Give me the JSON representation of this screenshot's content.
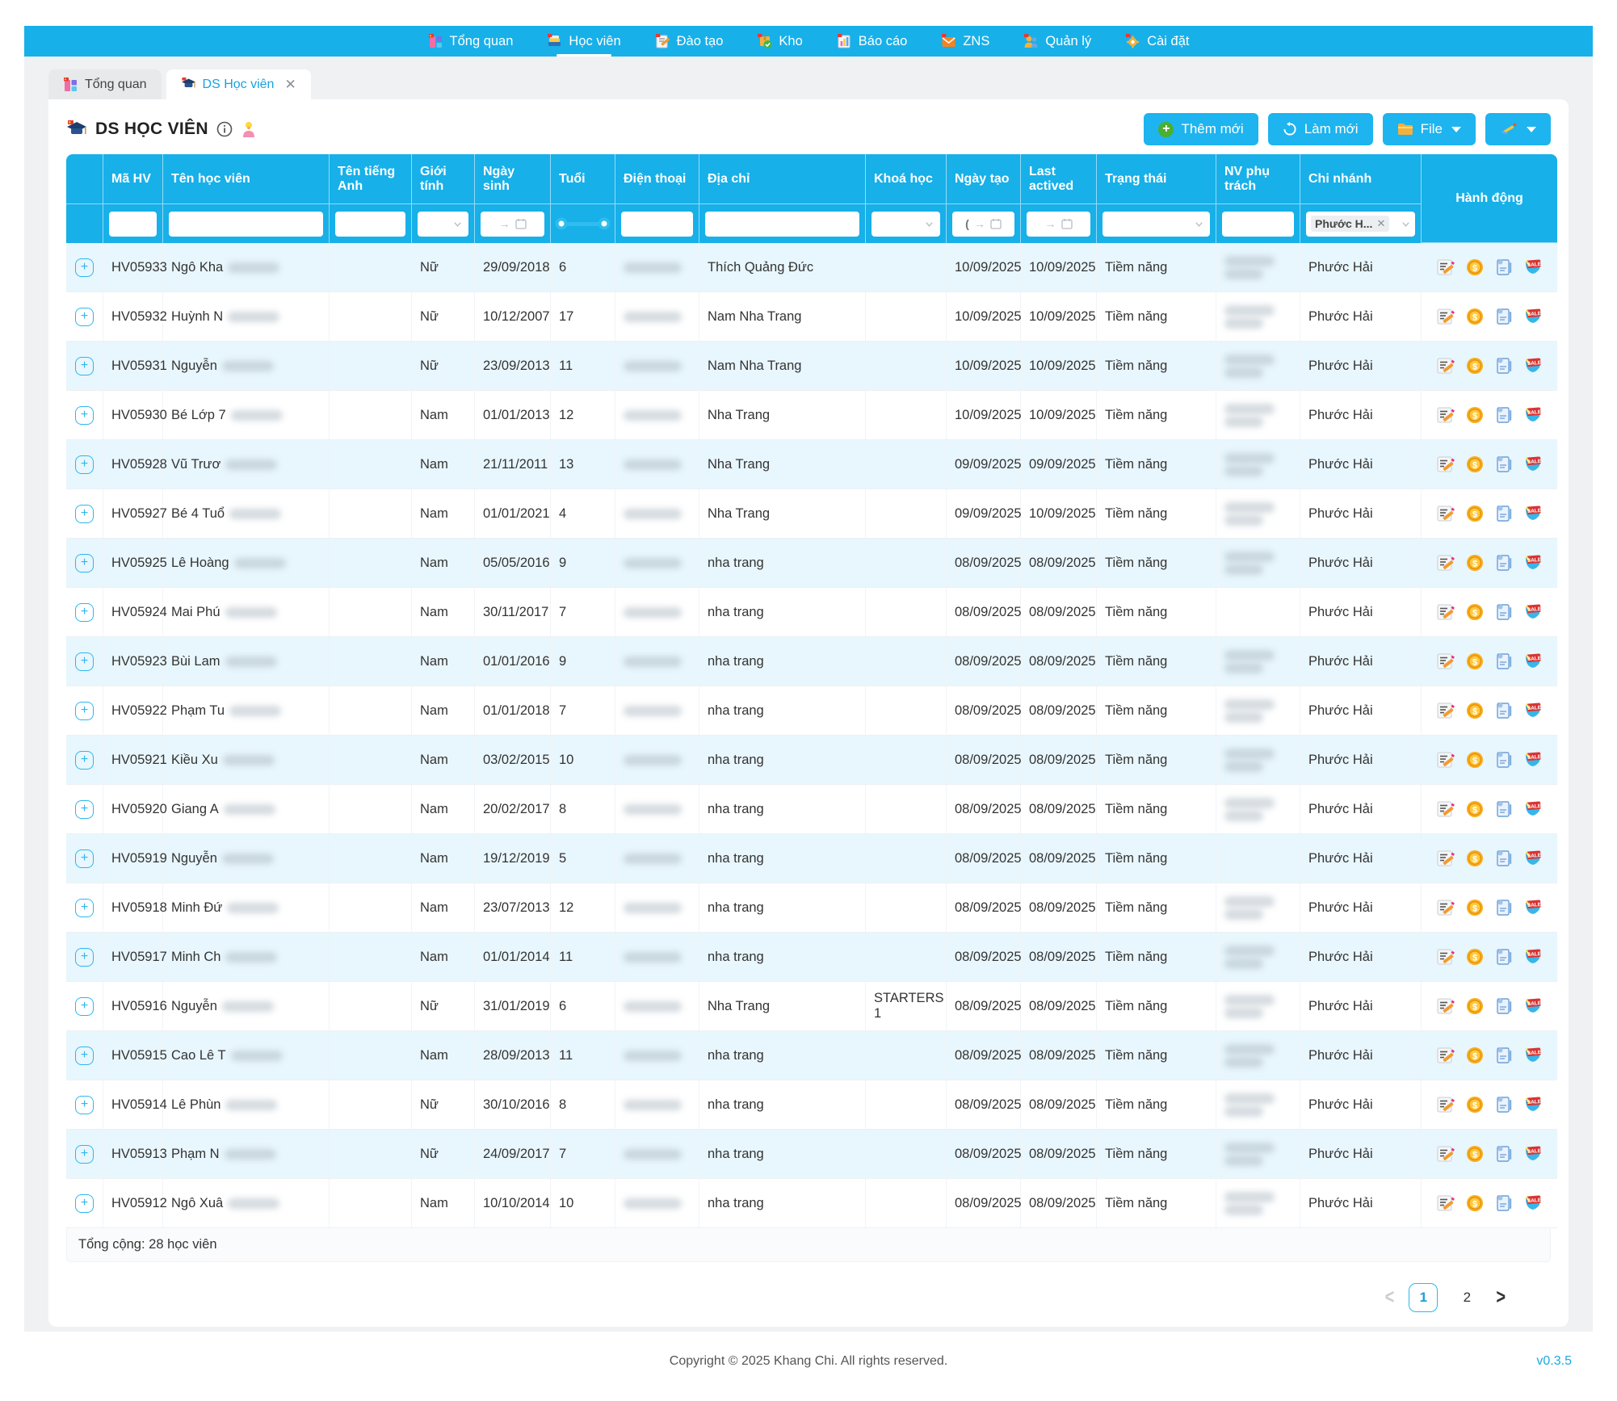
{
  "nav": {
    "items": [
      {
        "label": "Tổng quan",
        "icon": "overview-icon",
        "active": false
      },
      {
        "label": "Học viên",
        "icon": "students-icon",
        "active": true
      },
      {
        "label": "Đào tạo",
        "icon": "training-icon",
        "active": false
      },
      {
        "label": "Kho",
        "icon": "warehouse-icon",
        "active": false
      },
      {
        "label": "Báo cáo",
        "icon": "report-icon",
        "active": false
      },
      {
        "label": "ZNS",
        "icon": "zns-icon",
        "active": false
      },
      {
        "label": "Quản lý",
        "icon": "manage-icon",
        "active": false
      },
      {
        "label": "Cài đặt",
        "icon": "settings-icon",
        "active": false
      }
    ]
  },
  "tabs": [
    {
      "label": "Tổng quan",
      "icon": "overview-icon",
      "active": false,
      "closable": false
    },
    {
      "label": "DS Học viên",
      "icon": "gradcap-icon",
      "active": true,
      "closable": true,
      "close_glyph": "✕"
    }
  ],
  "header": {
    "title": "DS HỌC VIÊN"
  },
  "toolbar": {
    "add_label": "Thêm mới",
    "refresh_label": "Làm mới",
    "file_label": "File"
  },
  "table": {
    "columns": [
      "",
      "Mã HV",
      "Tên học viên",
      "Tên tiếng Anh",
      "Giới tính",
      "Ngày sinh",
      "Tuổi",
      "Điện thoại",
      "Địa chỉ",
      "Khoá học",
      "Ngày tạo",
      "Last actived",
      "Trạng thái",
      "NV phụ trách",
      "Chi nhánh",
      "Hành động"
    ],
    "filters": {
      "created_prefix": "(",
      "date_arrow": "→",
      "branch_tag": "Phước H...",
      "branch_tag_close": "✕"
    },
    "rows": [
      {
        "code": "HV05933",
        "name": "Ngô Kha",
        "gender": "Nữ",
        "dob": "29/09/2018",
        "age": "6",
        "address": "Thích Quảng Đức",
        "course": "",
        "created": "10/09/2025",
        "last": "10/09/2025",
        "status": "Tiềm năng",
        "nv": true,
        "branch": "Phước Hải"
      },
      {
        "code": "HV05932",
        "name": "Huỳnh N",
        "gender": "Nữ",
        "dob": "10/12/2007",
        "age": "17",
        "address": "Nam Nha Trang",
        "course": "",
        "created": "10/09/2025",
        "last": "10/09/2025",
        "status": "Tiềm năng",
        "nv": true,
        "branch": "Phước Hải"
      },
      {
        "code": "HV05931",
        "name": "Nguyễn",
        "gender": "Nữ",
        "dob": "23/09/2013",
        "age": "11",
        "address": "Nam Nha Trang",
        "course": "",
        "created": "10/09/2025",
        "last": "10/09/2025",
        "status": "Tiềm năng",
        "nv": true,
        "branch": "Phước Hải"
      },
      {
        "code": "HV05930",
        "name": "Bé Lớp 7",
        "gender": "Nam",
        "dob": "01/01/2013",
        "age": "12",
        "address": "Nha Trang",
        "course": "",
        "created": "10/09/2025",
        "last": "10/09/2025",
        "status": "Tiềm năng",
        "nv": true,
        "branch": "Phước Hải"
      },
      {
        "code": "HV05928",
        "name": "Vũ Trươ",
        "gender": "Nam",
        "dob": "21/11/2011",
        "age": "13",
        "address": "Nha Trang",
        "course": "",
        "created": "09/09/2025",
        "last": "09/09/2025",
        "status": "Tiềm năng",
        "nv": true,
        "branch": "Phước Hải"
      },
      {
        "code": "HV05927",
        "name": "Bé 4 Tuổ",
        "gender": "Nam",
        "dob": "01/01/2021",
        "age": "4",
        "address": "Nha Trang",
        "course": "",
        "created": "09/09/2025",
        "last": "10/09/2025",
        "status": "Tiềm năng",
        "nv": true,
        "branch": "Phước Hải"
      },
      {
        "code": "HV05925",
        "name": "Lê Hoàng",
        "gender": "Nam",
        "dob": "05/05/2016",
        "age": "9",
        "address": "nha trang",
        "course": "",
        "created": "08/09/2025",
        "last": "08/09/2025",
        "status": "Tiềm năng",
        "nv": true,
        "branch": "Phước Hải"
      },
      {
        "code": "HV05924",
        "name": "Mai Phú",
        "gender": "Nam",
        "dob": "30/11/2017",
        "age": "7",
        "address": "nha trang",
        "course": "",
        "created": "08/09/2025",
        "last": "08/09/2025",
        "status": "Tiềm năng",
        "nv": false,
        "branch": "Phước Hải"
      },
      {
        "code": "HV05923",
        "name": "Bùi Lam",
        "gender": "Nam",
        "dob": "01/01/2016",
        "age": "9",
        "address": "nha trang",
        "course": "",
        "created": "08/09/2025",
        "last": "08/09/2025",
        "status": "Tiềm năng",
        "nv": true,
        "branch": "Phước Hải"
      },
      {
        "code": "HV05922",
        "name": "Phạm Tu",
        "gender": "Nam",
        "dob": "01/01/2018",
        "age": "7",
        "address": "nha trang",
        "course": "",
        "created": "08/09/2025",
        "last": "08/09/2025",
        "status": "Tiềm năng",
        "nv": true,
        "branch": "Phước Hải"
      },
      {
        "code": "HV05921",
        "name": "Kiều Xu",
        "gender": "Nam",
        "dob": "03/02/2015",
        "age": "10",
        "address": "nha trang",
        "course": "",
        "created": "08/09/2025",
        "last": "08/09/2025",
        "status": "Tiềm năng",
        "nv": true,
        "branch": "Phước Hải"
      },
      {
        "code": "HV05920",
        "name": "Giang A",
        "gender": "Nam",
        "dob": "20/02/2017",
        "age": "8",
        "address": "nha trang",
        "course": "",
        "created": "08/09/2025",
        "last": "08/09/2025",
        "status": "Tiềm năng",
        "nv": true,
        "branch": "Phước Hải"
      },
      {
        "code": "HV05919",
        "name": "Nguyễn",
        "gender": "Nam",
        "dob": "19/12/2019",
        "age": "5",
        "address": "nha trang",
        "course": "",
        "created": "08/09/2025",
        "last": "08/09/2025",
        "status": "Tiềm năng",
        "nv": false,
        "branch": "Phước Hải"
      },
      {
        "code": "HV05918",
        "name": "Minh Đứ",
        "gender": "Nam",
        "dob": "23/07/2013",
        "age": "12",
        "address": "nha trang",
        "course": "",
        "created": "08/09/2025",
        "last": "08/09/2025",
        "status": "Tiềm năng",
        "nv": true,
        "branch": "Phước Hải"
      },
      {
        "code": "HV05917",
        "name": "Minh Ch",
        "gender": "Nam",
        "dob": "01/01/2014",
        "age": "11",
        "address": "nha trang",
        "course": "",
        "created": "08/09/2025",
        "last": "08/09/2025",
        "status": "Tiềm năng",
        "nv": true,
        "branch": "Phước Hải"
      },
      {
        "code": "HV05916",
        "name": "Nguyễn",
        "gender": "Nữ",
        "dob": "31/01/2019",
        "age": "6",
        "address": "Nha Trang",
        "course": "STARTERS 1",
        "created": "08/09/2025",
        "last": "08/09/2025",
        "status": "Tiềm năng",
        "nv": true,
        "branch": "Phước Hải"
      },
      {
        "code": "HV05915",
        "name": "Cao Lê T",
        "gender": "Nam",
        "dob": "28/09/2013",
        "age": "11",
        "address": "nha trang",
        "course": "",
        "created": "08/09/2025",
        "last": "08/09/2025",
        "status": "Tiềm năng",
        "nv": true,
        "branch": "Phước Hải"
      },
      {
        "code": "HV05914",
        "name": "Lê Phùn",
        "gender": "Nữ",
        "dob": "30/10/2016",
        "age": "8",
        "address": "nha trang",
        "course": "",
        "created": "08/09/2025",
        "last": "08/09/2025",
        "status": "Tiềm năng",
        "nv": true,
        "branch": "Phước Hải"
      },
      {
        "code": "HV05913",
        "name": "Phạm N",
        "gender": "Nữ",
        "dob": "24/09/2017",
        "age": "7",
        "address": "nha trang",
        "course": "",
        "created": "08/09/2025",
        "last": "08/09/2025",
        "status": "Tiềm năng",
        "nv": true,
        "branch": "Phước Hải"
      },
      {
        "code": "HV05912",
        "name": "Ngô Xuâ",
        "gender": "Nam",
        "dob": "10/10/2014",
        "age": "10",
        "address": "nha trang",
        "course": "",
        "created": "08/09/2025",
        "last": "08/09/2025",
        "status": "Tiềm năng",
        "nv": true,
        "branch": "Phước Hải"
      }
    ],
    "total_text": "Tổng cộng: 28 học viên",
    "action_icons": [
      "edit-icon",
      "payment-icon",
      "contract-icon",
      "sale-icon"
    ]
  },
  "pagination": {
    "prev": "<",
    "pages": [
      "1",
      "2"
    ],
    "active_page": "1",
    "next": ">"
  },
  "footer": {
    "copyright": "Copyright © 2025 Khang Chi. All rights reserved.",
    "version": "v0.3.5"
  }
}
